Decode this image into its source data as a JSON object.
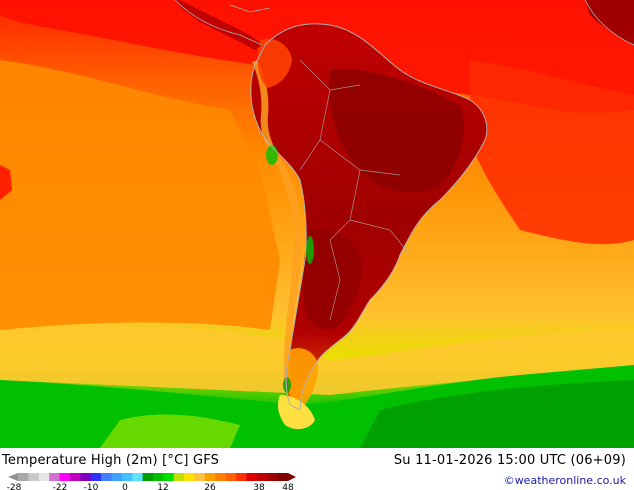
{
  "map": {
    "title": "Temperature High (2m) [°C] GFS",
    "timestamp": "Su 11-01-2026 15:00 UTC (06+09)",
    "credit": "©weatheronline.co.uk"
  },
  "legend": {
    "unit": "°C",
    "ticks": [
      "-28",
      "-22",
      "-10",
      "0",
      "12",
      "26",
      "38",
      "48"
    ],
    "colors": [
      "#a8a8a8",
      "#c8c8c8",
      "#e6e6e6",
      "#d070d0",
      "#ff00ff",
      "#c000c0",
      "#8000c0",
      "#3030ff",
      "#4080ff",
      "#40a0ff",
      "#40c0ff",
      "#60e0ff",
      "#00a000",
      "#00c000",
      "#00e000",
      "#c0e000",
      "#ffe000",
      "#ffc040",
      "#ffa000",
      "#ff8000",
      "#ff6000",
      "#ff3000",
      "#e00000",
      "#c00000",
      "#a00000",
      "#800000"
    ]
  },
  "colors": {
    "ocean_hot": "#ff0000",
    "ocean_warm": "#ff8a00",
    "ocean_mild": "#ffb42a",
    "ocean_cool": "#ffd040",
    "south_green": "#00c000",
    "land_hot": "#b40000",
    "coast_line": "#b0b0b0",
    "credit_text": "#1a1aa6"
  }
}
